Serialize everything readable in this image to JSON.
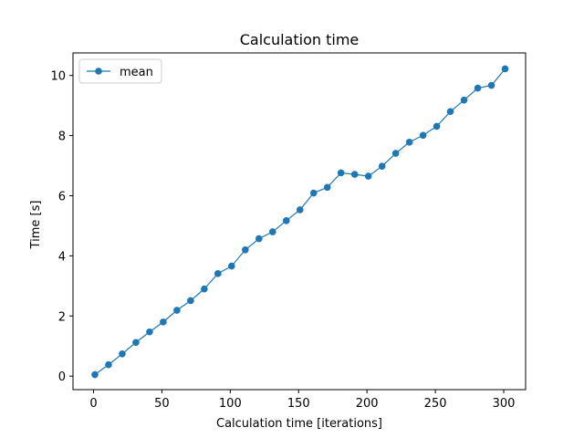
{
  "chart_data": {
    "type": "line",
    "title": "Calculation time",
    "xlabel": "Calculation time [iterations]",
    "ylabel": "Time [s]",
    "xlim": [
      -15,
      316
    ],
    "ylim": [
      -0.45,
      10.75
    ],
    "xticks": [
      0,
      50,
      100,
      150,
      200,
      250,
      300
    ],
    "yticks": [
      0,
      2,
      4,
      6,
      8,
      10
    ],
    "grid": false,
    "legend_position": "top-left",
    "series": [
      {
        "name": "mean",
        "color": "#1f77b4",
        "marker": "circle",
        "x": [
          1,
          11,
          21,
          31,
          41,
          51,
          61,
          71,
          81,
          91,
          101,
          111,
          121,
          131,
          141,
          151,
          161,
          171,
          181,
          191,
          201,
          211,
          221,
          231,
          241,
          251,
          261,
          271,
          281,
          291,
          301
        ],
        "y": [
          0.05,
          0.38,
          0.74,
          1.12,
          1.47,
          1.8,
          2.19,
          2.51,
          2.9,
          3.41,
          3.66,
          4.2,
          4.57,
          4.8,
          5.17,
          5.53,
          6.09,
          6.28,
          6.76,
          6.71,
          6.65,
          6.98,
          7.41,
          7.78,
          8.01,
          8.31,
          8.8,
          9.18,
          9.58,
          9.67,
          10.22
        ]
      }
    ]
  }
}
